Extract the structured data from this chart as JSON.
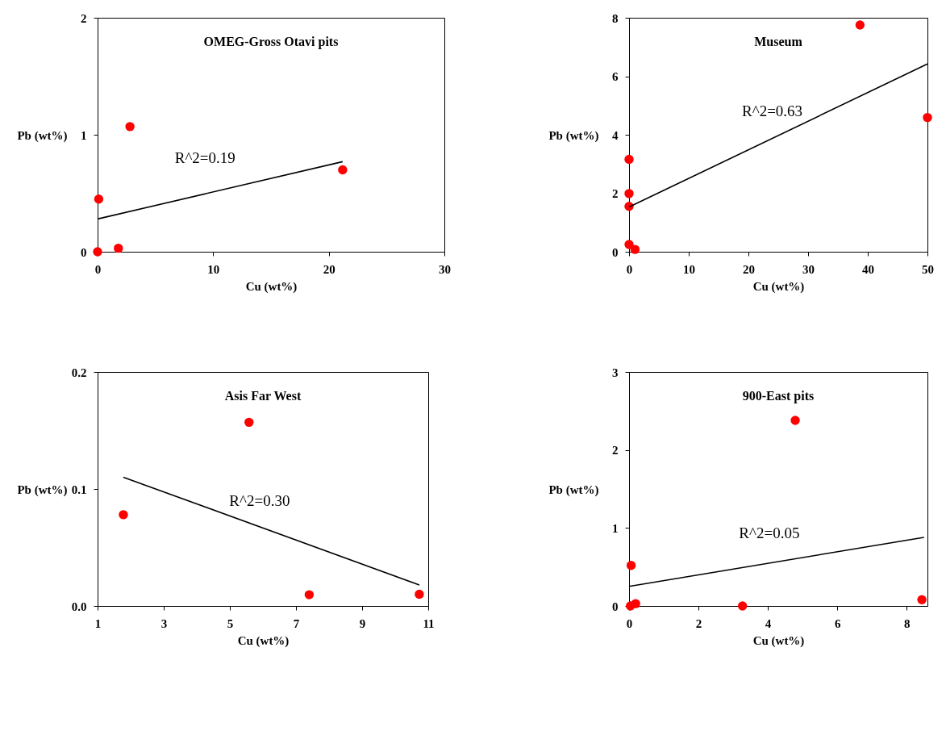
{
  "chart_data": [
    {
      "type": "scatter",
      "title": "OMEG-Gross Otavi pits",
      "xlabel": "Cu (wt%)",
      "ylabel": "Pb (wt%)",
      "xlim": [
        0,
        30
      ],
      "ylim": [
        0,
        2
      ],
      "xticks": [
        0,
        10,
        20,
        30
      ],
      "yticks": [
        0,
        1,
        2
      ],
      "grid": false,
      "line_style": "solid",
      "series": [
        {
          "color": "#ff0000",
          "marker": "circle",
          "x": [
            0,
            0.1,
            1.8,
            2.8,
            21.2
          ],
          "values": [
            0,
            0.45,
            0.03,
            1.07,
            0.7
          ]
        },
        {
          "type": "line",
          "color": "#000000",
          "x": [
            0,
            21.2
          ],
          "values": [
            0.28,
            0.77
          ]
        }
      ],
      "annotations": [
        "R^2=0.19"
      ]
    },
    {
      "type": "scatter",
      "title": "Museum",
      "xlabel": "Cu (wt%)",
      "ylabel": "Pb (wt%)",
      "xlim": [
        0,
        50
      ],
      "ylim": [
        0,
        8
      ],
      "xticks": [
        0,
        10,
        20,
        30,
        40,
        50
      ],
      "yticks": [
        0,
        2,
        4,
        6,
        8
      ],
      "grid": false,
      "line_style": "solid",
      "series": [
        {
          "color": "#ff0000",
          "marker": "circle",
          "x": [
            0,
            0,
            0,
            0,
            1,
            38.7,
            50
          ],
          "values": [
            3.16,
            1.99,
            1.55,
            0.25,
            0.08,
            7.75,
            4.59
          ]
        },
        {
          "type": "line",
          "color": "#000000",
          "x": [
            0,
            50
          ],
          "values": [
            1.53,
            6.42
          ]
        }
      ],
      "annotations": [
        "R^2=0.63"
      ]
    },
    {
      "type": "scatter",
      "title": "Asis Far West",
      "xlabel": "Cu (wt%)",
      "ylabel": "Pb (wt%)",
      "xlim": [
        1,
        11
      ],
      "ylim": [
        0,
        0.2
      ],
      "xticks": [
        1,
        3,
        5,
        7,
        9,
        11
      ],
      "yticks": [
        {
          "value": 0,
          "label": "0.0"
        },
        0.1,
        0.2
      ],
      "grid": false,
      "line_style": "solid",
      "series": [
        {
          "color": "#ff0000",
          "marker": "circle",
          "x": [
            1.78,
            5.58,
            7.4,
            10.73
          ],
          "values": [
            0.078,
            0.157,
            0.0096,
            0.01
          ]
        },
        {
          "type": "line",
          "color": "#000000",
          "x": [
            1.78,
            10.73
          ],
          "values": [
            0.11,
            0.018
          ]
        }
      ],
      "annotations": [
        "R^2=0.30"
      ]
    },
    {
      "type": "scatter",
      "title": "900-East pits",
      "xlabel": "Cu (wt%)",
      "ylabel": "Pb (wt%)",
      "xlim": [
        0,
        8.6
      ],
      "ylim": [
        0,
        3
      ],
      "xticks": [
        0,
        2,
        4,
        6,
        8
      ],
      "yticks": [
        0,
        1,
        2,
        3
      ],
      "grid": false,
      "line_style": "solid",
      "series": [
        {
          "color": "#ff0000",
          "marker": "circle",
          "x": [
            0.04,
            0.06,
            0.19,
            3.27,
            4.79,
            8.44
          ],
          "values": [
            0,
            0.52,
            0.03,
            0,
            2.38,
            0.08
          ]
        },
        {
          "type": "line",
          "color": "#000000",
          "x": [
            0,
            8.5
          ],
          "values": [
            0.25,
            0.88
          ]
        }
      ],
      "annotations": [
        "R^2=0.05"
      ]
    }
  ]
}
